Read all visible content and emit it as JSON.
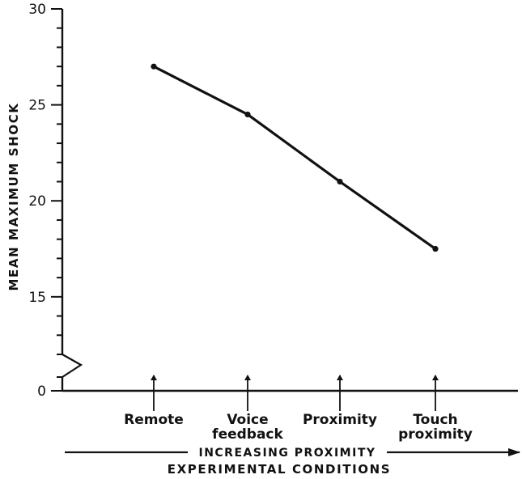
{
  "chart_data": {
    "type": "line",
    "title": "",
    "ylabel": "MEAN MAXIMUM SHOCK",
    "xlabel": "EXPERIMENTAL CONDITIONS",
    "x_axis_annotation": "INCREASING PROXIMITY",
    "categories": [
      [
        "Remote"
      ],
      [
        "Voice",
        "feedback"
      ],
      [
        "Proximity"
      ],
      [
        "Touch",
        "proximity"
      ]
    ],
    "series": [
      {
        "values": [
          27.0,
          24.5,
          21.0,
          17.5
        ]
      }
    ],
    "y_ticks": [
      0,
      15,
      20,
      25,
      30
    ],
    "ylim": [
      0,
      30
    ],
    "y_axis_broken_between": [
      0,
      12
    ],
    "grid": false,
    "legend": "none",
    "colors": {
      "line": "#111111",
      "axis": "#111111",
      "text": "#111111",
      "background": "#ffffff"
    }
  }
}
